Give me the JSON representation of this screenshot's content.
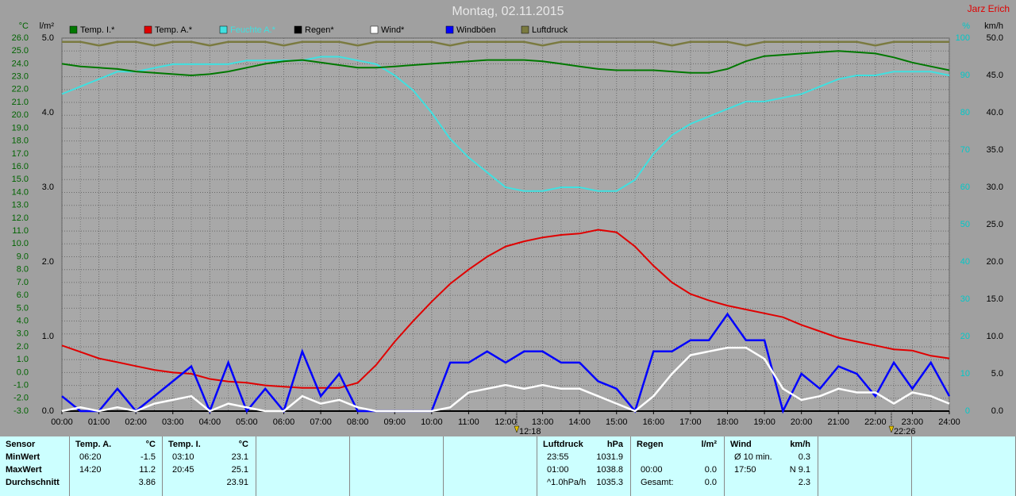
{
  "chart_data": {
    "type": "line",
    "title": "Montag, 02.11.2015",
    "author": "Jarz Erich",
    "x": [
      0,
      0.5,
      1,
      1.5,
      2,
      2.5,
      3,
      3.5,
      4,
      4.5,
      5,
      5.5,
      6,
      6.5,
      7,
      7.5,
      8,
      8.5,
      9,
      9.5,
      10,
      10.5,
      11,
      11.5,
      12,
      12.5,
      13,
      13.5,
      14,
      14.5,
      15,
      15.5,
      16,
      16.5,
      17,
      17.5,
      18,
      18.5,
      19,
      19.5,
      20,
      20.5,
      21,
      21.5,
      22,
      22.5,
      23,
      23.5,
      24
    ],
    "xlim": [
      0,
      24
    ],
    "xticks": [
      {
        "value": 0,
        "label": "00:00"
      },
      {
        "value": 1,
        "label": "01:00"
      },
      {
        "value": 2,
        "label": "02:00"
      },
      {
        "value": 3,
        "label": "03:00"
      },
      {
        "value": 4,
        "label": "04:00"
      },
      {
        "value": 5,
        "label": "05:00"
      },
      {
        "value": 6,
        "label": "06:00"
      },
      {
        "value": 7,
        "label": "07:00"
      },
      {
        "value": 8,
        "label": "08:00"
      },
      {
        "value": 9,
        "label": "09:00"
      },
      {
        "value": 10,
        "label": "10:00"
      },
      {
        "value": 11,
        "label": "11:00"
      },
      {
        "value": 12,
        "label": "12:00"
      },
      {
        "value": 13,
        "label": "13:00"
      },
      {
        "value": 14,
        "label": "14:00"
      },
      {
        "value": 15,
        "label": "15:00"
      },
      {
        "value": 16,
        "label": "16:00"
      },
      {
        "value": 17,
        "label": "17:00"
      },
      {
        "value": 18,
        "label": "18:00"
      },
      {
        "value": 19,
        "label": "19:00"
      },
      {
        "value": 20,
        "label": "20:00"
      },
      {
        "value": 21,
        "label": "21:00"
      },
      {
        "value": 22,
        "label": "22:00"
      },
      {
        "value": 23,
        "label": "23:00"
      },
      {
        "value": 24,
        "label": "24:00"
      }
    ],
    "grid": true,
    "axes": [
      {
        "id": "y",
        "unit": "°C",
        "color": "#006400",
        "lim": [
          -3,
          26
        ],
        "ticks": [
          {
            "value": 26,
            "label": "26.0"
          },
          {
            "value": 25,
            "label": "25.0"
          },
          {
            "value": 24,
            "label": "24.0"
          },
          {
            "value": 23,
            "label": "23.0"
          },
          {
            "value": 22,
            "label": "22.0"
          },
          {
            "value": 21,
            "label": "21.0"
          },
          {
            "value": 20,
            "label": "20.0"
          },
          {
            "value": 19,
            "label": "19.0"
          },
          {
            "value": 18,
            "label": "18.0"
          },
          {
            "value": 17,
            "label": "17.0"
          },
          {
            "value": 16,
            "label": "16.0"
          },
          {
            "value": 15,
            "label": "15.0"
          },
          {
            "value": 14,
            "label": "14.0"
          },
          {
            "value": 13,
            "label": "13.0"
          },
          {
            "value": 12,
            "label": "12.0"
          },
          {
            "value": 11,
            "label": "11.0"
          },
          {
            "value": 10,
            "label": "10.0"
          },
          {
            "value": 9,
            "label": "9.0"
          },
          {
            "value": 8,
            "label": "8.0"
          },
          {
            "value": 7,
            "label": "7.0"
          },
          {
            "value": 6,
            "label": "6.0"
          },
          {
            "value": 5,
            "label": "5.0"
          },
          {
            "value": 4,
            "label": "4.0"
          },
          {
            "value": 3,
            "label": "3.0"
          },
          {
            "value": 2,
            "label": "2.0"
          },
          {
            "value": 1,
            "label": "1.0"
          },
          {
            "value": 0,
            "label": "0.0"
          },
          {
            "value": -1,
            "label": "-1.0"
          },
          {
            "value": -2,
            "label": "-2.0"
          },
          {
            "value": -3,
            "label": "-3.0"
          }
        ]
      },
      {
        "id": "y4",
        "unit": "l/m²",
        "color": "#000000",
        "lim": [
          0,
          5
        ],
        "ticks": [
          {
            "value": 5,
            "label": "5.0"
          },
          {
            "value": 4,
            "label": "4.0"
          },
          {
            "value": 3,
            "label": "3.0"
          },
          {
            "value": 2,
            "label": "2.0"
          },
          {
            "value": 1,
            "label": "1.0"
          },
          {
            "value": 0,
            "label": "0.0"
          }
        ]
      },
      {
        "id": "y2",
        "unit": "%",
        "color": "#00c8c8",
        "lim": [
          0,
          100
        ],
        "ticks": [
          100,
          90,
          80,
          70,
          60,
          50,
          40,
          30,
          20,
          10,
          0
        ]
      },
      {
        "id": "y3",
        "unit": "km/h",
        "color": "#000000",
        "lim": [
          0,
          50
        ],
        "ticks": [
          {
            "value": 50,
            "label": "50.0"
          },
          {
            "value": 45,
            "label": "45.0"
          },
          {
            "value": 40,
            "label": "40.0"
          },
          {
            "value": 35,
            "label": "35.0"
          },
          {
            "value": 30,
            "label": "30.0"
          },
          {
            "value": 25,
            "label": "25.0"
          },
          {
            "value": 20,
            "label": "20.0"
          },
          {
            "value": 15,
            "label": "15.0"
          },
          {
            "value": 10,
            "label": "10.0"
          },
          {
            "value": 5,
            "label": "5.0"
          },
          {
            "value": 0,
            "label": "0.0"
          }
        ]
      }
    ],
    "series": [
      {
        "name": "Temp. I.*",
        "color": "#007800",
        "axis": "y",
        "values": [
          24.0,
          23.8,
          23.7,
          23.6,
          23.4,
          23.3,
          23.2,
          23.1,
          23.2,
          23.4,
          23.7,
          24.0,
          24.2,
          24.3,
          24.1,
          23.9,
          23.7,
          23.7,
          23.8,
          23.9,
          24.0,
          24.1,
          24.2,
          24.3,
          24.3,
          24.3,
          24.2,
          24.0,
          23.8,
          23.6,
          23.5,
          23.5,
          23.5,
          23.4,
          23.3,
          23.3,
          23.6,
          24.2,
          24.6,
          24.7,
          24.8,
          24.9,
          25.0,
          24.9,
          24.8,
          24.5,
          24.1,
          23.8,
          23.5
        ]
      },
      {
        "name": "Temp. A.*",
        "color": "#e00000",
        "axis": "y",
        "values": [
          2.1,
          1.6,
          1.1,
          0.8,
          0.5,
          0.2,
          0.0,
          -0.1,
          -0.5,
          -0.7,
          -0.8,
          -1.0,
          -1.1,
          -1.2,
          -1.2,
          -1.2,
          -0.8,
          0.6,
          2.4,
          4.0,
          5.5,
          6.9,
          8.0,
          9.0,
          9.8,
          10.2,
          10.5,
          10.7,
          10.8,
          11.1,
          10.9,
          9.8,
          8.3,
          7.0,
          6.1,
          5.6,
          5.2,
          4.9,
          4.6,
          4.3,
          3.7,
          3.2,
          2.7,
          2.4,
          2.1,
          1.8,
          1.7,
          1.3,
          1.1
        ]
      },
      {
        "name": "Feuchte A.*",
        "color": "#40e0e0",
        "axis": "y2",
        "values": [
          85,
          87,
          89,
          91,
          91,
          92,
          93,
          93,
          93,
          93,
          94,
          94,
          94,
          94,
          95,
          95,
          94,
          93,
          90,
          86,
          80,
          73,
          68,
          64,
          60,
          59,
          59,
          60,
          60,
          59,
          59,
          62,
          69,
          74,
          77,
          79,
          81,
          83,
          83,
          84,
          85,
          87,
          89,
          90,
          90,
          91,
          91,
          91,
          90
        ]
      },
      {
        "name": "Regen*",
        "color": "#000000",
        "axis": "y4",
        "values": [
          0,
          0,
          0,
          0,
          0,
          0,
          0,
          0,
          0,
          0,
          0,
          0,
          0,
          0,
          0,
          0,
          0,
          0,
          0,
          0,
          0,
          0,
          0,
          0,
          0,
          0,
          0,
          0,
          0,
          0,
          0,
          0,
          0,
          0,
          0,
          0,
          0,
          0,
          0,
          0,
          0,
          0,
          0,
          0,
          0,
          0,
          0,
          0,
          0
        ]
      },
      {
        "name": "Wind*",
        "color": "#ffffff",
        "axis": "y3",
        "values": [
          0,
          0.5,
          0,
          0.5,
          0,
          1,
          1.5,
          2,
          0,
          1,
          0.5,
          0,
          0,
          2,
          1,
          1.5,
          0.5,
          0,
          0,
          0,
          0,
          0.5,
          2.5,
          3,
          3.5,
          3,
          3.5,
          3,
          3,
          2,
          1,
          0,
          2,
          5,
          7.5,
          8,
          8.5,
          8.5,
          7,
          3,
          1.5,
          2,
          3,
          2.5,
          2.5,
          1,
          2.5,
          2,
          1
        ]
      },
      {
        "name": "Windböen",
        "color": "#0000ff",
        "axis": "y3",
        "values": [
          2,
          0,
          0,
          3,
          0,
          2,
          4,
          6,
          0,
          6.5,
          0,
          3,
          0,
          8,
          2,
          5,
          0,
          0,
          0,
          0,
          0,
          6.5,
          6.5,
          8,
          6.5,
          8,
          8,
          6.5,
          6.5,
          4,
          3,
          0,
          8,
          8,
          9.5,
          9.5,
          13,
          9.5,
          9.5,
          0,
          5,
          3,
          6,
          5,
          2,
          6.5,
          3,
          6.5,
          2
        ]
      },
      {
        "name": "Luftdruck",
        "color": "#7a7a40",
        "axis": "y2",
        "values": [
          99,
          99,
          98,
          99,
          99,
          98,
          99,
          99,
          98,
          99,
          99,
          99,
          98,
          99,
          99,
          99,
          98,
          99,
          99,
          99,
          99,
          98,
          99,
          99,
          99,
          99,
          98,
          99,
          99,
          99,
          99,
          99,
          99,
          98,
          99,
          99,
          99,
          98,
          99,
          99,
          99,
          99,
          99,
          99,
          98,
          99,
          99,
          99,
          99
        ]
      }
    ],
    "annotations": [
      {
        "text": "12:18",
        "x": 12.3
      },
      {
        "text": "22:26",
        "x": 22.433
      }
    ]
  },
  "table": {
    "row_labels": [
      "Sensor",
      "MinWert",
      "MaxWert",
      "Durchschnitt"
    ],
    "groups": [
      {
        "title": "Temp. A.",
        "unit": "°C",
        "rows": [
          [
            "06:20",
            "-1.5"
          ],
          [
            "14:20",
            "11.2"
          ],
          [
            null,
            "3.86"
          ]
        ]
      },
      {
        "title": "Temp. I.",
        "unit": "°C",
        "rows": [
          [
            "03:10",
            "23.1"
          ],
          [
            "20:45",
            "25.1"
          ],
          [
            null,
            "23.91"
          ]
        ]
      },
      {
        "title": "Luftdruck",
        "unit": "hPa",
        "rows": [
          [
            "23:55",
            "1031.9"
          ],
          [
            "01:00",
            "1038.8"
          ],
          [
            "^1.0hPa/h",
            "1035.3"
          ]
        ]
      },
      {
        "title": "Regen",
        "unit": "l/m²",
        "rows": [
          [
            null,
            null
          ],
          [
            "00:00",
            "0.0"
          ],
          [
            "Gesamt:",
            "0.0"
          ]
        ]
      },
      {
        "title": "Wind",
        "unit": "km/h",
        "rows": [
          [
            "Ø 10 min.",
            "0.3"
          ],
          [
            "17:50",
            "N 9.1"
          ],
          [
            null,
            "2.3"
          ]
        ]
      }
    ]
  }
}
